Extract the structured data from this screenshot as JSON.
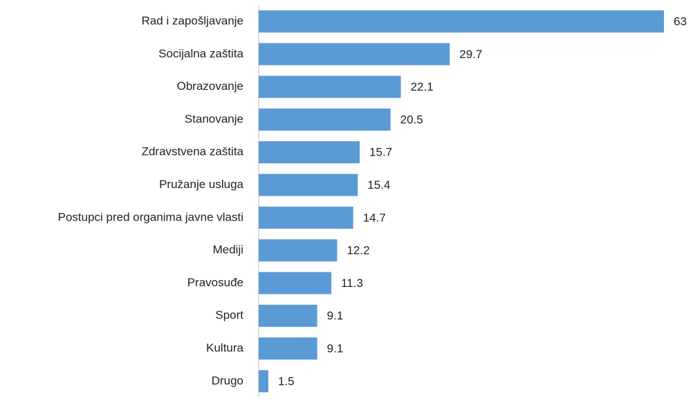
{
  "chart_data": {
    "type": "bar",
    "orientation": "horizontal",
    "categories": [
      "Rad i zapošljavanje",
      "Socijalna zaštita",
      "Obrazovanje",
      "Stanovanje",
      "Zdravstvena zaštita",
      "Pružanje usluga",
      "Postupci pred organima javne vlasti",
      "Mediji",
      "Pravosuđe",
      "Sport",
      "Kultura",
      "Drugo"
    ],
    "values": [
      63,
      29.7,
      22.1,
      20.5,
      15.7,
      15.4,
      14.7,
      12.2,
      11.3,
      9.1,
      9.1,
      1.5
    ],
    "color": "#5b9bd5",
    "data_labels": true
  }
}
